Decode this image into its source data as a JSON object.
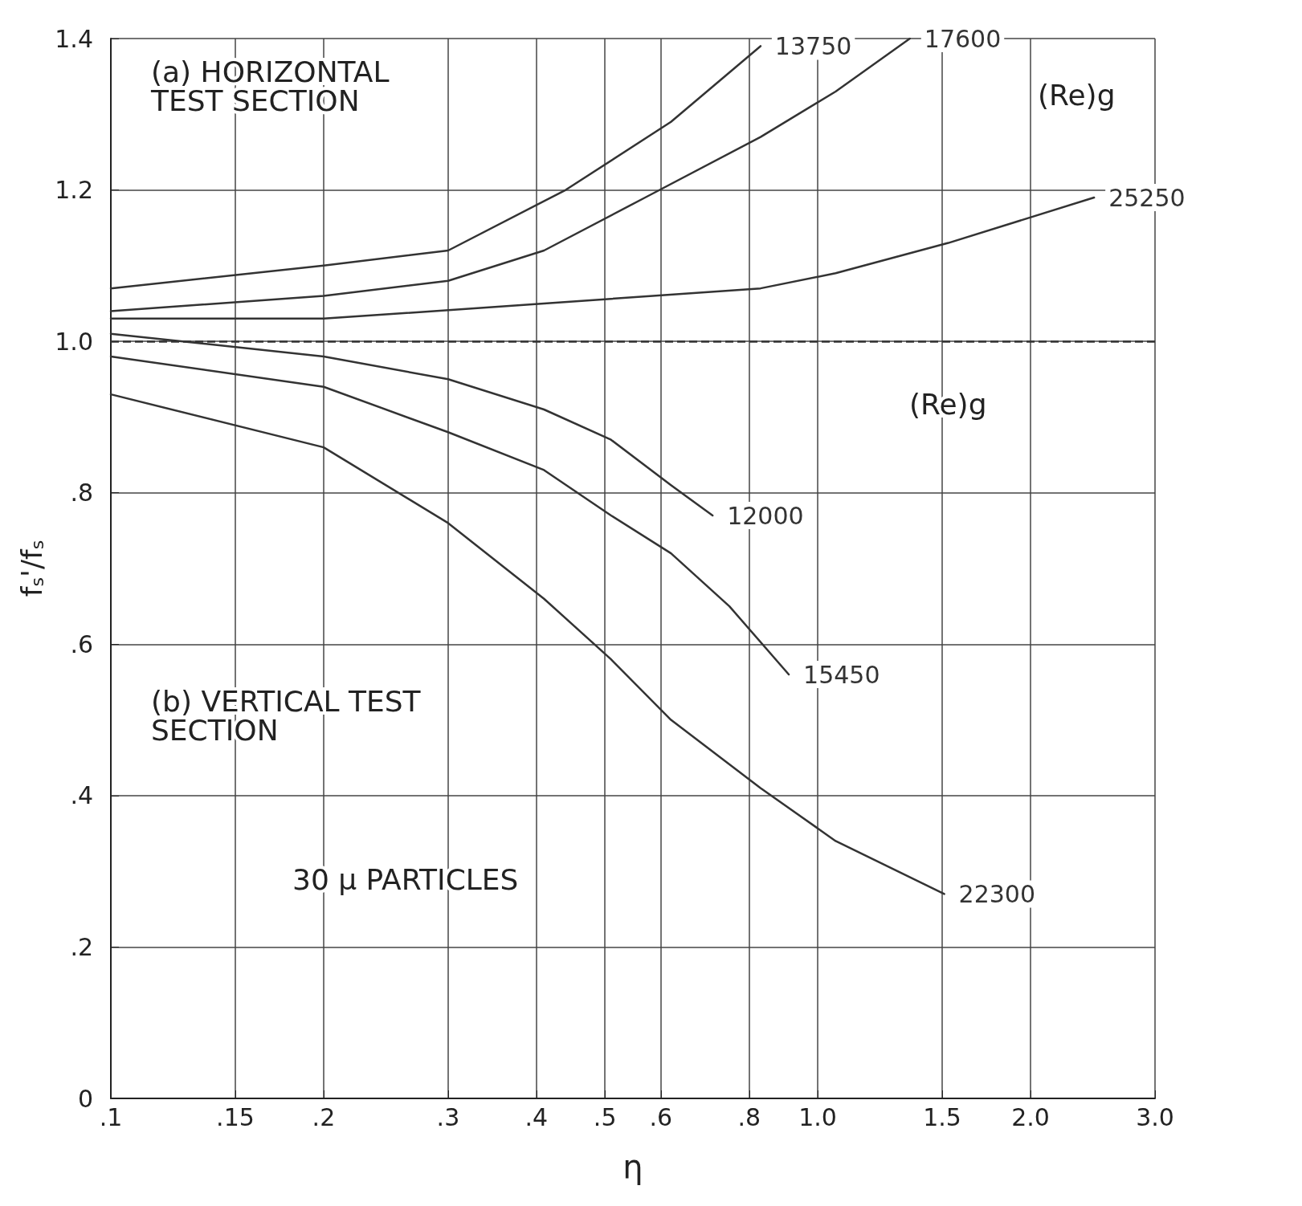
{
  "chart_data": {
    "type": "line",
    "xlabel": "η",
    "ylabel": "f$_{s}$'/f$_{s}$",
    "log": "x",
    "grid": true,
    "legend": false,
    "marker": "none",
    "line_style": "solid",
    "xlim": [
      0.1,
      3.0
    ],
    "ylim": [
      0,
      1.4
    ],
    "xticks": [
      {
        "value": 0.1,
        "label": ".1"
      },
      {
        "value": 0.15,
        "label": ".15"
      },
      {
        "value": 0.2,
        "label": ".2"
      },
      {
        "value": 0.3,
        "label": ".3"
      },
      {
        "value": 0.4,
        "label": ".4"
      },
      {
        "value": 0.5,
        "label": ".5"
      },
      {
        "value": 0.6,
        "label": ".6"
      },
      {
        "value": 0.8,
        "label": ".8"
      },
      {
        "value": 1.0,
        "label": "1.0"
      },
      {
        "value": 1.5,
        "label": "1.5"
      },
      {
        "value": 2.0,
        "label": "2.0"
      },
      {
        "value": 3.0,
        "label": "3.0"
      }
    ],
    "yticks": [
      0,
      {
        "value": 0.2,
        "label": ".2"
      },
      {
        "value": 0.4,
        "label": ".4"
      },
      {
        "value": 0.6,
        "label": ".6"
      },
      {
        "value": 0.8,
        "label": ".8"
      },
      {
        "value": 1.0,
        "label": "1.0"
      },
      {
        "value": 1.2,
        "label": "1.2"
      },
      {
        "value": 1.4,
        "label": "1.4"
      }
    ],
    "ref_lines": [
      {
        "axis": "y",
        "value": 1.0,
        "line_style": "dashed",
        "color": "#333333"
      }
    ],
    "annotations": [
      "(a) HORIZONTAL TEST SECTION",
      "(Re)g",
      "(Re)g",
      "(b) VERTICAL TEST SECTION",
      "30 μ PARTICLES"
    ],
    "series": [
      {
        "name": "13750",
        "color": "#333333",
        "x": [
          0.1,
          0.2,
          0.3,
          0.44,
          0.62,
          0.83
        ],
        "values": [
          1.07,
          1.1,
          1.12,
          1.2,
          1.29,
          1.39
        ]
      },
      {
        "name": "17600",
        "color": "#333333",
        "x": [
          0.1,
          0.2,
          0.3,
          0.41,
          0.57,
          0.83,
          1.06,
          1.35
        ],
        "values": [
          1.04,
          1.06,
          1.08,
          1.12,
          1.19,
          1.27,
          1.33,
          1.4
        ]
      },
      {
        "name": "25250",
        "color": "#333333",
        "x": [
          0.1,
          0.2,
          0.41,
          0.83,
          1.06,
          1.53,
          2.46
        ],
        "values": [
          1.03,
          1.03,
          1.05,
          1.07,
          1.09,
          1.13,
          1.19
        ]
      },
      {
        "name": "12000",
        "color": "#333333",
        "x": [
          0.1,
          0.2,
          0.3,
          0.41,
          0.51,
          0.62,
          0.71
        ],
        "values": [
          1.01,
          0.98,
          0.95,
          0.91,
          0.87,
          0.81,
          0.77
        ]
      },
      {
        "name": "15450",
        "color": "#333333",
        "x": [
          0.1,
          0.2,
          0.3,
          0.41,
          0.51,
          0.62,
          0.75,
          0.91
        ],
        "values": [
          0.98,
          0.94,
          0.88,
          0.83,
          0.77,
          0.72,
          0.65,
          0.56
        ]
      },
      {
        "name": "22300",
        "color": "#333333",
        "x": [
          0.1,
          0.2,
          0.3,
          0.41,
          0.51,
          0.62,
          0.83,
          1.06,
          1.51
        ],
        "values": [
          0.93,
          0.86,
          0.76,
          0.66,
          0.58,
          0.5,
          0.41,
          0.34,
          0.27
        ]
      }
    ]
  }
}
